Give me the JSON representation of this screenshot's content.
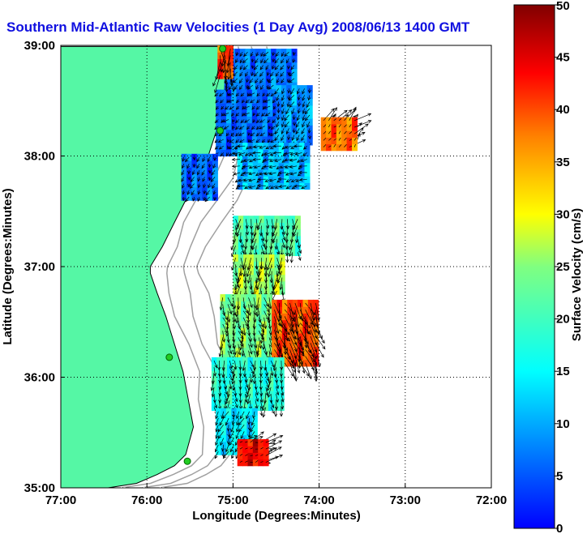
{
  "chart_data": {
    "type": "heatmap",
    "title": "Southern Mid-Atlantic Raw Velocities (1 Day Avg) 2008/06/13 1400 GMT",
    "xlabel": "Longitude (Degrees:Minutes)",
    "ylabel": "Latitude (Degrees:Minutes)",
    "xlim": [
      -77,
      -72
    ],
    "ylim": [
      35,
      39
    ],
    "x_ticks": [
      {
        "value": -77,
        "label": "77:00"
      },
      {
        "value": -76,
        "label": "76:00"
      },
      {
        "value": -75,
        "label": "75:00"
      },
      {
        "value": -74,
        "label": "74:00"
      },
      {
        "value": -73,
        "label": "73:00"
      },
      {
        "value": -72,
        "label": "72:00"
      }
    ],
    "y_ticks": [
      {
        "value": 35,
        "label": "35:00"
      },
      {
        "value": 36,
        "label": "36:00"
      },
      {
        "value": 37,
        "label": "37:00"
      },
      {
        "value": 38,
        "label": "38:00"
      },
      {
        "value": 39,
        "label": "39:00"
      }
    ],
    "grid": true,
    "grid_style": "dotted",
    "colorbar": {
      "label": "Surface Velocity (cm/s)",
      "min": 0,
      "max": 50,
      "ticks": [
        0,
        5,
        10,
        15,
        20,
        25,
        30,
        35,
        40,
        45,
        50
      ],
      "tick_labels": [
        "0",
        "5",
        "10",
        "15",
        "20",
        "25",
        "30",
        "35",
        "40",
        "45",
        "50"
      ],
      "colormap": "jet"
    },
    "colors": {
      "land": "#55f7a5",
      "water": "#ffffff",
      "bathymetry": "#a0a0a0",
      "station": "#22cc22",
      "title": "#1010e0"
    },
    "coastline": [
      [
        -77.0,
        38.99
      ],
      [
        -75.11,
        38.99
      ],
      [
        -75.08,
        38.82
      ],
      [
        -75.1,
        38.58
      ],
      [
        -75.17,
        38.28
      ],
      [
        -75.28,
        38.02
      ],
      [
        -75.4,
        37.8
      ],
      [
        -75.55,
        37.6
      ],
      [
        -75.68,
        37.4
      ],
      [
        -75.82,
        37.18
      ],
      [
        -75.96,
        37.0
      ],
      [
        -75.96,
        36.94
      ],
      [
        -75.88,
        36.76
      ],
      [
        -75.78,
        36.55
      ],
      [
        -75.68,
        36.3
      ],
      [
        -75.58,
        36.05
      ],
      [
        -75.52,
        35.8
      ],
      [
        -75.46,
        35.55
      ],
      [
        -75.55,
        35.3
      ],
      [
        -75.68,
        35.2
      ],
      [
        -75.88,
        35.12
      ],
      [
        -76.12,
        35.04
      ],
      [
        -76.45,
        35.0
      ],
      [
        -77.0,
        35.0
      ]
    ],
    "stations": [
      {
        "lon": -75.12,
        "lat": 38.97
      },
      {
        "lon": -75.15,
        "lat": 38.23
      },
      {
        "lon": -75.74,
        "lat": 36.18
      },
      {
        "lon": -75.53,
        "lat": 35.24
      }
    ],
    "velocity_field": [
      {
        "lat_min": 38.55,
        "lat_max": 38.95,
        "lon_min": -75.1,
        "lon_max": -74.3,
        "speed": 7,
        "dir_deg": 210
      },
      {
        "lat_min": 38.0,
        "lat_max": 38.55,
        "lon_min": -75.2,
        "lon_max": -74.5,
        "speed": 6,
        "dir_deg": 225
      },
      {
        "lat_min": 38.1,
        "lat_max": 38.6,
        "lon_min": -74.5,
        "lon_max": -74.1,
        "speed": 9,
        "dir_deg": 200
      },
      {
        "lat_min": 37.7,
        "lat_max": 38.1,
        "lon_min": -74.95,
        "lon_max": -74.15,
        "speed": 11,
        "dir_deg": 250
      },
      {
        "lat_min": 37.6,
        "lat_max": 38.0,
        "lon_min": -75.6,
        "lon_max": -75.2,
        "speed": 6,
        "dir_deg": 200
      },
      {
        "lat_min": 37.1,
        "lat_max": 37.45,
        "lon_min": -75.0,
        "lon_max": -74.25,
        "speed": 21,
        "dir_deg": 180
      },
      {
        "lat_min": 36.75,
        "lat_max": 37.1,
        "lon_min": -75.0,
        "lon_max": -74.45,
        "speed": 26,
        "dir_deg": 185
      },
      {
        "lat_min": 36.15,
        "lat_max": 36.75,
        "lon_min": -75.15,
        "lon_max": -74.55,
        "speed": 24,
        "dir_deg": 170
      },
      {
        "lat_min": 36.1,
        "lat_max": 36.65,
        "lon_min": -74.55,
        "lon_max": -74.05,
        "speed": 40,
        "dir_deg": 160
      },
      {
        "lat_min": 35.7,
        "lat_max": 36.15,
        "lon_min": -75.25,
        "lon_max": -74.45,
        "speed": 18,
        "dir_deg": 175
      },
      {
        "lat_min": 35.3,
        "lat_max": 35.7,
        "lon_min": -75.2,
        "lon_max": -74.75,
        "speed": 14,
        "dir_deg": 200
      },
      {
        "lat_min": 35.2,
        "lat_max": 35.42,
        "lon_min": -74.95,
        "lon_max": -74.6,
        "speed": 44,
        "dir_deg": 70
      },
      {
        "lat_min": 38.7,
        "lat_max": 38.98,
        "lon_min": -75.18,
        "lon_max": -75.02,
        "speed": 40,
        "dir_deg": 180
      },
      {
        "lat_min": 38.05,
        "lat_max": 38.35,
        "lon_min": -73.98,
        "lon_max": -73.6,
        "speed": 38,
        "dir_deg": 45
      }
    ]
  }
}
